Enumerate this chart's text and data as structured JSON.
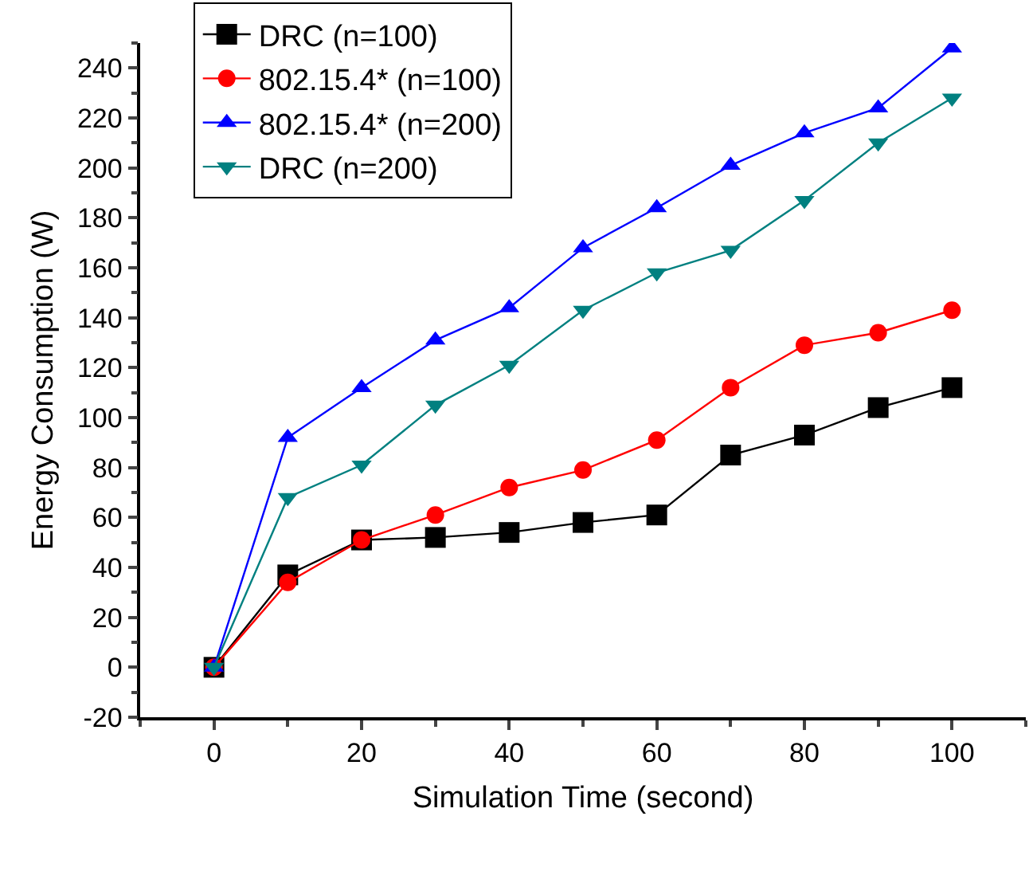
{
  "chart_data": {
    "type": "line",
    "xlabel": "Simulation Time (second)",
    "ylabel": "Energy Consumption (W)",
    "x": [
      0,
      10,
      20,
      30,
      40,
      50,
      60,
      70,
      80,
      90,
      100
    ],
    "series": [
      {
        "name": "DRC (n=100)",
        "color": "#000000",
        "marker": "square",
        "values": [
          0,
          37,
          51,
          52,
          54,
          58,
          61,
          85,
          93,
          104,
          112
        ]
      },
      {
        "name": "802.15.4* (n=100)",
        "color": "#ff0000",
        "marker": "circle",
        "values": [
          0,
          34,
          51,
          61,
          72,
          79,
          91,
          112,
          129,
          134,
          143
        ]
      },
      {
        "name": "802.15.4* (n=200)",
        "color": "#0000ff",
        "marker": "triangle",
        "values": [
          0,
          92,
          112,
          131,
          144,
          168,
          184,
          201,
          214,
          224,
          248
        ]
      },
      {
        "name": "DRC (n=200)",
        "color": "#008080",
        "marker": "triangle-down",
        "values": [
          0,
          68,
          81,
          105,
          121,
          143,
          158,
          167,
          187,
          210,
          228
        ]
      }
    ],
    "xlim": [
      -10,
      110
    ],
    "xticks": [
      0,
      20,
      40,
      60,
      80,
      100
    ],
    "ylim": [
      -20,
      250
    ],
    "yticks": [
      -20,
      0,
      20,
      40,
      60,
      80,
      100,
      120,
      140,
      160,
      180,
      200,
      220,
      240
    ],
    "grid": false,
    "legend": "top left"
  }
}
